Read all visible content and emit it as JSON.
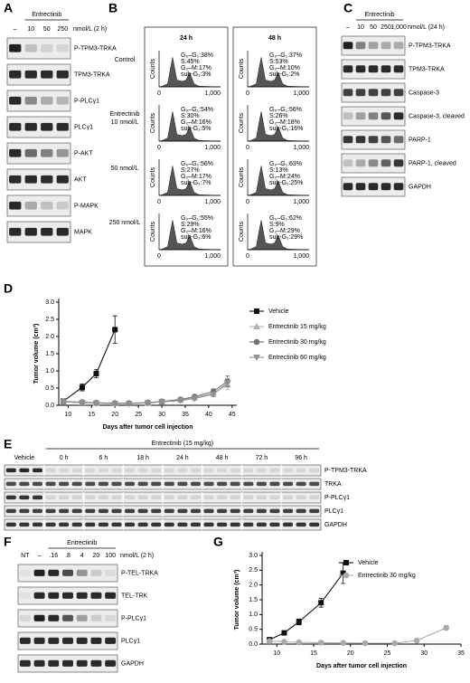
{
  "panels": {
    "A": {
      "label": "A",
      "header": "Entrectinib",
      "lanes": [
        "–",
        "10",
        "50",
        "250"
      ],
      "unit": "nmol/L (2 h)",
      "rows": [
        "P-TPM3-TRKA",
        "TPM3-TRKA",
        "P-PLCγ1",
        "PLCγ1",
        "P-AKT",
        "AKT",
        "P-MAPK",
        "MAPK"
      ]
    },
    "B": {
      "label": "B",
      "columns": [
        "24 h",
        "48 h"
      ],
      "y_label": "Counts",
      "x_ticks": [
        "0",
        "1,000"
      ],
      "rows": [
        {
          "name": [
            "Control"
          ],
          "stats": [
            [
              "G₀–G₁:38%",
              "S:45%",
              "G₂–M:17%",
              "sub-G₁:3%"
            ],
            [
              "G₀–G₁:37%",
              "S:53%",
              "G₂–M:10%",
              "sub-G₁:2%"
            ]
          ]
        },
        {
          "name": [
            "Entrectinib",
            "10 nmol/L"
          ],
          "stats": [
            [
              "G₀–G₁:54%",
              "S:30%",
              "G₂–M:16%",
              "sub-G₁:5%"
            ],
            [
              "G₀–G₁:56%",
              "S:26%",
              "G₂–M:18%",
              "sub-G₁:16%"
            ]
          ]
        },
        {
          "name": [
            "50 nmol/L"
          ],
          "stats": [
            [
              "G₀–G₁:56%",
              "S:27%",
              "G₂–M:17%",
              "sub-G₁:7%"
            ],
            [
              "G₀–G₁:63%",
              "S:13%",
              "G₂–M:24%",
              "sub-G₁:25%"
            ]
          ]
        },
        {
          "name": [
            "250 nmol/L"
          ],
          "stats": [
            [
              "G₀–G₁:55%",
              "S:29%",
              "G₂–M:16%",
              "sub-G₁:6%"
            ],
            [
              "G₀–G₁:62%",
              "S:9%",
              "G₂–M:29%",
              "sub-G₁:29%"
            ]
          ]
        }
      ]
    },
    "C": {
      "label": "C",
      "header": "Entrectinib",
      "lanes": [
        "–",
        "10",
        "50",
        "250",
        "1,000"
      ],
      "unit": "nmol/L (24 h)",
      "rows": [
        "P-TPM3-TRKA",
        "TPM3-TRKA",
        "Caspase-3",
        "Caspase-3, cleaved",
        "PARP-1",
        "PARP-1, cleaved",
        "GAPDH"
      ]
    },
    "E": {
      "label": "E",
      "header": "Entrectinib (15 mg/kg)",
      "lanes": [
        "Vehicle",
        "0 h",
        "6 h",
        "18 h",
        "24 h",
        "48 h",
        "72 h",
        "96 h"
      ],
      "rows": [
        "P-TPM3-TRKA",
        "TRKA",
        "P-PLCγ1",
        "PLCγ1",
        "GAPDH"
      ]
    },
    "F": {
      "label": "F",
      "header": "Entrectinib",
      "lanes": [
        "NT",
        "–",
        ".16",
        ".8",
        "4",
        "20",
        "100"
      ],
      "unit": "nmol/L (2 h)",
      "rows": [
        "P-TEL-TRKA",
        "TEL-TRK",
        "P-PLCγ1",
        "PLCγ1",
        "GAPDH"
      ]
    }
  },
  "chart_data": [
    {
      "type": "line",
      "label": "D",
      "xlabel": "Days after tumor cell injection",
      "ylabel": "Tumor volume (cm³)",
      "x": [
        9,
        13,
        16,
        20,
        23,
        27,
        30,
        34,
        37,
        41,
        44
      ],
      "xlim": [
        8,
        46
      ],
      "xticks": [
        10,
        15,
        20,
        25,
        30,
        35,
        40,
        45
      ],
      "ylim": [
        0,
        3
      ],
      "yticks": [
        {
          "value": 0,
          "label": "0.0"
        },
        {
          "value": 0.5,
          "label": "0.5"
        },
        {
          "value": 1,
          "label": "1.0"
        },
        {
          "value": 1.5,
          "label": "1.5"
        },
        {
          "value": 2,
          "label": "2.0"
        },
        {
          "value": 2.5,
          "label": "2.5"
        },
        {
          "value": 3,
          "label": "3.0"
        }
      ],
      "legend": "right",
      "series": [
        {
          "name": "Vehicle",
          "color": "#111111",
          "marker": "square",
          "values": [
            0.12,
            0.52,
            0.92,
            2.2,
            null,
            null,
            null,
            null,
            null,
            null,
            null
          ],
          "errors": [
            0.04,
            0.1,
            0.12,
            0.4,
            null,
            null,
            null,
            null,
            null,
            null,
            null
          ]
        },
        {
          "name": "Entrectinib 15 mg/kg",
          "color": "#b0b0b0",
          "marker": "triangle",
          "values": [
            0.1,
            0.08,
            0.07,
            0.06,
            0.05,
            0.07,
            0.1,
            0.15,
            0.22,
            0.35,
            0.6
          ],
          "errors": [
            0.02,
            0.02,
            0.02,
            0.02,
            0.02,
            0.02,
            0.03,
            0.04,
            0.06,
            0.08,
            0.15
          ]
        },
        {
          "name": "Entrectinib 30 mg/kg",
          "color": "#707070",
          "marker": "circle",
          "values": [
            0.11,
            0.09,
            0.07,
            0.06,
            0.06,
            0.08,
            0.11,
            0.17,
            0.25,
            0.4,
            0.7
          ],
          "errors": [
            0.02,
            0.02,
            0.02,
            0.02,
            0.02,
            0.02,
            0.03,
            0.04,
            0.06,
            0.08,
            0.15
          ]
        },
        {
          "name": "Entrectinib 60 mg/kg",
          "color": "#909090",
          "marker": "triangle-down",
          "values": [
            0.1,
            0.08,
            0.06,
            0.05,
            0.05,
            0.07,
            0.1,
            0.14,
            0.2,
            0.32,
            0.65
          ],
          "errors": [
            0.02,
            0.02,
            0.02,
            0.02,
            0.02,
            0.02,
            0.03,
            0.04,
            0.05,
            0.07,
            0.12
          ]
        }
      ]
    },
    {
      "type": "line",
      "label": "G",
      "xlabel": "Days after tumor cell injection",
      "ylabel": "Tumor volume (cm³)",
      "x": [
        9,
        11,
        13,
        16,
        19,
        22,
        26,
        29,
        33
      ],
      "xlim": [
        8,
        35
      ],
      "xticks": [
        10,
        15,
        20,
        25,
        30,
        35
      ],
      "ylim": [
        0,
        3
      ],
      "yticks": [
        {
          "value": 0,
          "label": "0.0"
        },
        {
          "value": 0.5,
          "label": "0.5"
        },
        {
          "value": 1,
          "label": "1.0"
        },
        {
          "value": 1.5,
          "label": "1.5"
        },
        {
          "value": 2,
          "label": "2.0"
        },
        {
          "value": 2.5,
          "label": "2.5"
        },
        {
          "value": 3,
          "label": "3.0"
        }
      ],
      "legend": "upper right",
      "series": [
        {
          "name": "Vehicle",
          "color": "#111111",
          "marker": "square",
          "values": [
            0.15,
            0.38,
            0.75,
            1.4,
            2.4,
            null,
            null,
            null,
            null
          ],
          "errors": [
            0.03,
            0.06,
            0.1,
            0.15,
            0.35,
            null,
            null,
            null,
            null
          ]
        },
        {
          "name": "Entrectinib 30 mg/kg",
          "color": "#aaaaaa",
          "marker": "circle",
          "values": [
            0.1,
            0.08,
            0.06,
            0.05,
            0.04,
            0.03,
            0.03,
            0.12,
            0.55
          ],
          "errors": [
            0.02,
            0.02,
            0.01,
            0.01,
            0.01,
            0.01,
            0.01,
            0.03,
            0.08
          ]
        }
      ]
    }
  ]
}
